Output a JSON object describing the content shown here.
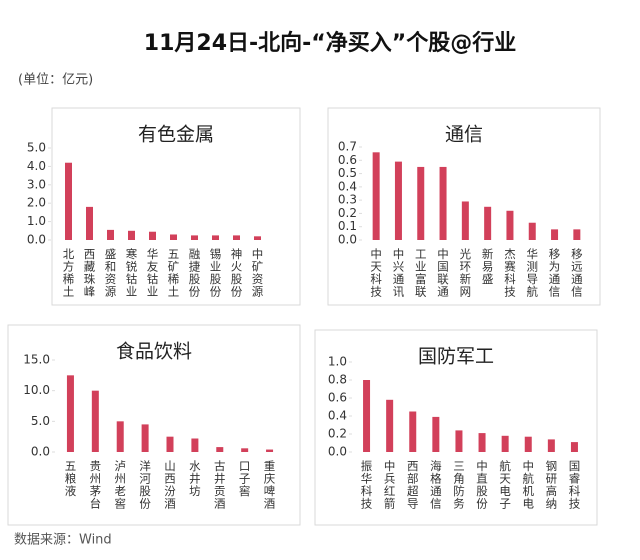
{
  "title": "11月24日-北向-“净买入”个股@行业",
  "unit": "(单位：亿元)",
  "source": "数据来源：Wind",
  "chart_data": [
    {
      "type": "bar",
      "title": "有色金属",
      "color": "#d2405a",
      "categories": [
        "北方稀土",
        "西藏珠峰",
        "盛和资源",
        "寒锐钴业",
        "华友钴业",
        "五矿稀土",
        "融捷股份",
        "锡业股份",
        "神火股份",
        "中矿资源"
      ],
      "values": [
        4.2,
        1.8,
        0.55,
        0.5,
        0.45,
        0.3,
        0.25,
        0.25,
        0.25,
        0.2
      ],
      "ylim": [
        0,
        5
      ],
      "yticks": [
        {
          "value": 0,
          "label": "0.0"
        },
        {
          "value": 1,
          "label": "1.0"
        },
        {
          "value": 2,
          "label": "2.0"
        },
        {
          "value": 3,
          "label": "3.0"
        },
        {
          "value": 4,
          "label": "4.0"
        },
        {
          "value": 5,
          "label": "5.0"
        }
      ]
    },
    {
      "type": "bar",
      "title": "通信",
      "color": "#d2405a",
      "categories": [
        "中天科技",
        "中兴通讯",
        "工业富联",
        "中国联通",
        "光环新网",
        "新易盛",
        "杰赛科技",
        "华测导航",
        "移为通信",
        "移远通信"
      ],
      "values": [
        0.66,
        0.59,
        0.55,
        0.55,
        0.29,
        0.25,
        0.22,
        0.13,
        0.08,
        0.08
      ],
      "ylim": [
        0,
        0.7
      ],
      "yticks": [
        {
          "value": 0,
          "label": "0.0"
        },
        0.1,
        0.2,
        0.3,
        0.4,
        0.5,
        0.6,
        0.7
      ]
    },
    {
      "type": "bar",
      "title": "食品饮料",
      "color": "#d2405a",
      "categories": [
        "五粮液",
        "贵州茅台",
        "泸州老窖",
        "洋河股份",
        "山西汾酒",
        "水井坊",
        "古井贡酒",
        "口子窖",
        "重庆啤酒"
      ],
      "values": [
        12.5,
        10.0,
        5.0,
        4.5,
        2.5,
        2.2,
        0.8,
        0.6,
        0.4
      ],
      "ylim": [
        0,
        15
      ],
      "yticks": [
        {
          "value": 0,
          "label": "0.0"
        },
        {
          "value": 5,
          "label": "5.0"
        },
        {
          "value": 10,
          "label": "10.0"
        },
        {
          "value": 15,
          "label": "15.0"
        }
      ]
    },
    {
      "type": "bar",
      "title": "国防军工",
      "color": "#d2405a",
      "categories": [
        "振华科技",
        "中兵红箭",
        "西部超导",
        "海格通信",
        "三角防务",
        "中直股份",
        "航天电子",
        "中航机电",
        "钢研高纳",
        "国睿科技"
      ],
      "values": [
        0.8,
        0.58,
        0.45,
        0.39,
        0.24,
        0.21,
        0.18,
        0.17,
        0.14,
        0.11
      ],
      "ylim": [
        0,
        1
      ],
      "yticks": [
        {
          "value": 0,
          "label": "0.0"
        },
        0.2,
        0.4,
        0.6,
        0.8,
        {
          "value": 1,
          "label": "1.0"
        }
      ]
    }
  ]
}
